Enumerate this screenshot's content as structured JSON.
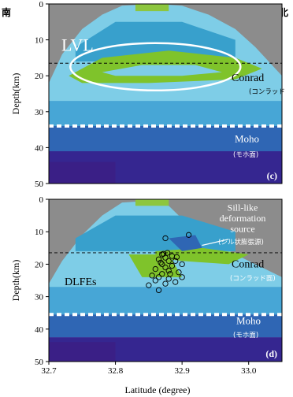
{
  "corner_labels": {
    "left": "南",
    "right": "北"
  },
  "colors": {
    "no_data": "#8c8c8c",
    "very_low": "#7fc32b",
    "low": "#47a6d6",
    "mid_low": "#7ecde7",
    "mid": "#38a0cc",
    "mid_high": "#2f66b4",
    "high": "#352690",
    "highest": "#3a1f86",
    "top_green": "#8dc63f"
  },
  "chart_data": [
    {
      "type": "heatmap",
      "panel_label": "(c)",
      "xlim": [
        32.7,
        33.05
      ],
      "ylim": [
        50,
        0
      ],
      "ylabel": "Depth(km)",
      "y_ticks": [
        "0",
        "10",
        "20",
        "30",
        "40",
        "50"
      ],
      "x_ticks": [],
      "conrad_depth": 16.5,
      "moho_depth": 34,
      "annotations": {
        "lvl": "LVL",
        "conrad": "Conrad",
        "conrad_jp": "(コンラッド",
        "moho": "Moho",
        "moho_jp": "(モホ面)"
      }
    },
    {
      "type": "heatmap",
      "panel_label": "(d)",
      "xlim": [
        32.7,
        33.05
      ],
      "ylim": [
        50,
        0
      ],
      "xlabel": "Latitude (degree)",
      "ylabel": "Depth(km)",
      "y_ticks": [
        "0",
        "10",
        "20",
        "30",
        "40",
        "50"
      ],
      "x_ticks": [
        "32.7",
        "32.8",
        "32.9",
        "33.0"
      ],
      "conrad_depth": 16.5,
      "moho_depth": 35.5,
      "annotations": {
        "sill_1": "Sill-like",
        "sill_2": "deformation",
        "sill_3": "source",
        "sill_jp": "(シル状膨張源)",
        "conrad": "Conrad",
        "conrad_jp": "(コンラッド面)",
        "dlfes": "DLFEs",
        "moho": "Moho",
        "moho_jp": "(モホ面)"
      },
      "dlfe_events": [
        [
          32.875,
          12.0
        ],
        [
          32.91,
          11.0
        ],
        [
          32.87,
          17.0
        ],
        [
          32.875,
          18.0
        ],
        [
          32.88,
          19.0
        ],
        [
          32.885,
          17.5
        ],
        [
          32.865,
          18.5
        ],
        [
          32.87,
          20.0
        ],
        [
          32.875,
          21.0
        ],
        [
          32.88,
          22.0
        ],
        [
          32.87,
          23.0
        ],
        [
          32.865,
          24.0
        ],
        [
          32.86,
          25.0
        ],
        [
          32.875,
          26.0
        ],
        [
          32.88,
          24.5
        ],
        [
          32.885,
          20.5
        ],
        [
          32.89,
          19.0
        ],
        [
          32.895,
          22.5
        ],
        [
          32.86,
          21.5
        ],
        [
          32.855,
          23.5
        ],
        [
          32.85,
          26.5
        ],
        [
          32.865,
          28.0
        ],
        [
          32.89,
          25.5
        ],
        [
          32.9,
          20.0
        ],
        [
          32.9,
          24.0
        ],
        [
          32.872,
          16.8
        ],
        [
          32.878,
          16.5
        ],
        [
          32.868,
          19.5
        ],
        [
          32.882,
          23.0
        ],
        [
          32.892,
          17.8
        ]
      ]
    }
  ]
}
